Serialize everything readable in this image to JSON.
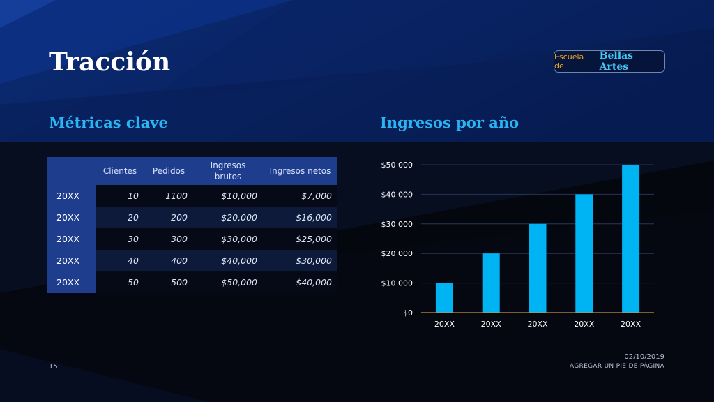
{
  "slide": {
    "title": "Tracción",
    "logo_small": "Escuela de",
    "logo_big": "Bellas Artes",
    "page_number": "15",
    "date": "02/10/2019",
    "footer": "AGREGAR UN PIE DE PÁGINA"
  },
  "metrics": {
    "title": "Métricas clave",
    "headers": [
      "",
      "Clientes",
      "Pedidos",
      "Ingresos brutos",
      "Ingresos netos"
    ],
    "rows": [
      {
        "year": "20XX",
        "clientes": "10",
        "pedidos": "1100",
        "brutos": "$10,000",
        "netos": "$7,000"
      },
      {
        "year": "20XX",
        "clientes": "20",
        "pedidos": "200",
        "brutos": "$20,000",
        "netos": "$16,000"
      },
      {
        "year": "20XX",
        "clientes": "30",
        "pedidos": "300",
        "brutos": "$30,000",
        "netos": "$25,000"
      },
      {
        "year": "20XX",
        "clientes": "40",
        "pedidos": "400",
        "brutos": "$40,000",
        "netos": "$30,000"
      },
      {
        "year": "20XX",
        "clientes": "50",
        "pedidos": "500",
        "brutos": "$50,000",
        "netos": "$40,000"
      }
    ]
  },
  "chart_data": {
    "type": "bar",
    "title": "Ingresos por año",
    "categories": [
      "20XX",
      "20XX",
      "20XX",
      "20XX",
      "20XX"
    ],
    "values": [
      10000,
      20000,
      30000,
      40000,
      50000
    ],
    "ylim": [
      0,
      50000
    ],
    "yticks": [
      0,
      10000,
      20000,
      30000,
      40000,
      50000
    ],
    "ytick_labels": [
      "$0",
      "$10 000",
      "$20 000",
      "$30 000",
      "$40 000",
      "$50 000"
    ],
    "xlabel": "",
    "ylabel": "",
    "grid": true,
    "legend": "none",
    "bar_color": "#00b4f4",
    "axis_color": "#c8973a"
  }
}
